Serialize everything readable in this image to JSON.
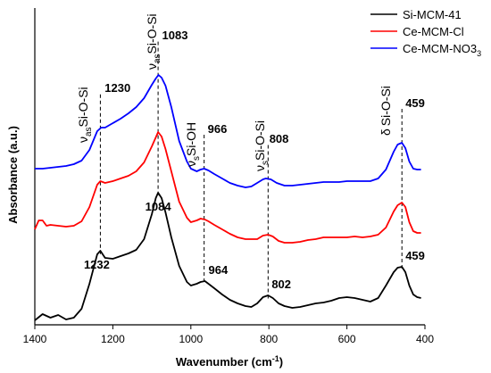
{
  "chart_data": {
    "type": "line",
    "xlabel": "Wavenumber (cm",
    "xlabel_sup": "-1",
    "xlabel_end": ")",
    "ylabel": "Absorbance (a.u.)",
    "xlim": [
      1400,
      400
    ],
    "x_reversed": true,
    "xticks": [
      "1400",
      "1200",
      "1000",
      "800",
      "600",
      "400"
    ],
    "legend_position": "top-right",
    "series": [
      {
        "name": "Si-MCM-41",
        "color": "#000000",
        "points": [
          [
            1400,
            359
          ],
          [
            1380,
            352
          ],
          [
            1360,
            356
          ],
          [
            1340,
            353
          ],
          [
            1320,
            358
          ],
          [
            1300,
            356
          ],
          [
            1280,
            346
          ],
          [
            1260,
            318
          ],
          [
            1240,
            285
          ],
          [
            1232,
            281
          ],
          [
            1220,
            289
          ],
          [
            1200,
            290
          ],
          [
            1180,
            287
          ],
          [
            1160,
            284
          ],
          [
            1140,
            280
          ],
          [
            1120,
            268
          ],
          [
            1100,
            240
          ],
          [
            1090,
            222
          ],
          [
            1084,
            216
          ],
          [
            1075,
            222
          ],
          [
            1065,
            238
          ],
          [
            1050,
            266
          ],
          [
            1030,
            298
          ],
          [
            1010,
            316
          ],
          [
            1000,
            320
          ],
          [
            985,
            318
          ],
          [
            975,
            316
          ],
          [
            964,
            315
          ],
          [
            955,
            318
          ],
          [
            940,
            323
          ],
          [
            920,
            330
          ],
          [
            900,
            336
          ],
          [
            880,
            340
          ],
          [
            860,
            343
          ],
          [
            845,
            344
          ],
          [
            830,
            340
          ],
          [
            815,
            333
          ],
          [
            802,
            331
          ],
          [
            790,
            334
          ],
          [
            775,
            340
          ],
          [
            760,
            343
          ],
          [
            740,
            345
          ],
          [
            720,
            344
          ],
          [
            700,
            342
          ],
          [
            680,
            340
          ],
          [
            660,
            339
          ],
          [
            640,
            337
          ],
          [
            620,
            334
          ],
          [
            600,
            333
          ],
          [
            580,
            334
          ],
          [
            560,
            336
          ],
          [
            540,
            338
          ],
          [
            520,
            334
          ],
          [
            500,
            320
          ],
          [
            480,
            305
          ],
          [
            470,
            300
          ],
          [
            459,
            299
          ],
          [
            450,
            305
          ],
          [
            440,
            320
          ],
          [
            430,
            330
          ],
          [
            420,
            333
          ],
          [
            410,
            334
          ]
        ],
        "markers": [
          {
            "x": 1232,
            "text": "1232",
            "placement": "below"
          },
          {
            "x": 1084,
            "text": "1084",
            "placement": "below"
          },
          {
            "x": 964,
            "text": "964",
            "placement": "above"
          },
          {
            "x": 802,
            "text": "802",
            "placement": "above"
          },
          {
            "x": 459,
            "text": "459",
            "placement": "above"
          }
        ]
      },
      {
        "name": "Ce-MCM-Cl",
        "color": "#ff0000",
        "points": [
          [
            1400,
            257
          ],
          [
            1390,
            247
          ],
          [
            1380,
            247
          ],
          [
            1370,
            253
          ],
          [
            1360,
            252
          ],
          [
            1340,
            253
          ],
          [
            1320,
            254
          ],
          [
            1300,
            253
          ],
          [
            1280,
            248
          ],
          [
            1260,
            232
          ],
          [
            1240,
            207
          ],
          [
            1232,
            203
          ],
          [
            1220,
            205
          ],
          [
            1200,
            203
          ],
          [
            1180,
            200
          ],
          [
            1160,
            197
          ],
          [
            1140,
            192
          ],
          [
            1120,
            182
          ],
          [
            1100,
            164
          ],
          [
            1090,
            154
          ],
          [
            1084,
            148
          ],
          [
            1075,
            153
          ],
          [
            1065,
            167
          ],
          [
            1050,
            192
          ],
          [
            1030,
            226
          ],
          [
            1010,
            244
          ],
          [
            1000,
            249
          ],
          [
            985,
            247
          ],
          [
            975,
            245
          ],
          [
            964,
            246
          ],
          [
            955,
            248
          ],
          [
            940,
            252
          ],
          [
            920,
            257
          ],
          [
            900,
            262
          ],
          [
            880,
            266
          ],
          [
            860,
            268
          ],
          [
            845,
            268
          ],
          [
            830,
            268
          ],
          [
            815,
            264
          ],
          [
            802,
            263
          ],
          [
            790,
            265
          ],
          [
            775,
            270
          ],
          [
            760,
            272
          ],
          [
            740,
            272
          ],
          [
            720,
            271
          ],
          [
            700,
            269
          ],
          [
            680,
            268
          ],
          [
            660,
            266
          ],
          [
            640,
            266
          ],
          [
            620,
            266
          ],
          [
            600,
            266
          ],
          [
            580,
            265
          ],
          [
            560,
            266
          ],
          [
            540,
            265
          ],
          [
            520,
            263
          ],
          [
            500,
            255
          ],
          [
            480,
            237
          ],
          [
            470,
            230
          ],
          [
            459,
            227
          ],
          [
            450,
            232
          ],
          [
            440,
            249
          ],
          [
            430,
            259
          ],
          [
            420,
            261
          ],
          [
            410,
            261
          ]
        ],
        "markers": []
      },
      {
        "name": "Ce-MCM-NO3",
        "color": "#0000ff",
        "points": [
          [
            1400,
            189
          ],
          [
            1380,
            189
          ],
          [
            1360,
            188
          ],
          [
            1340,
            187
          ],
          [
            1320,
            186
          ],
          [
            1300,
            184
          ],
          [
            1280,
            180
          ],
          [
            1260,
            168
          ],
          [
            1240,
            147
          ],
          [
            1230,
            143
          ],
          [
            1220,
            143
          ],
          [
            1200,
            138
          ],
          [
            1180,
            133
          ],
          [
            1160,
            127
          ],
          [
            1140,
            120
          ],
          [
            1120,
            110
          ],
          [
            1100,
            95
          ],
          [
            1090,
            88
          ],
          [
            1083,
            84
          ],
          [
            1075,
            87
          ],
          [
            1065,
            96
          ],
          [
            1050,
            120
          ],
          [
            1030,
            158
          ],
          [
            1010,
            181
          ],
          [
            1000,
            189
          ],
          [
            985,
            192
          ],
          [
            975,
            190
          ],
          [
            966,
            189
          ],
          [
            955,
            191
          ],
          [
            940,
            195
          ],
          [
            920,
            200
          ],
          [
            900,
            205
          ],
          [
            880,
            208
          ],
          [
            860,
            210
          ],
          [
            845,
            209
          ],
          [
            830,
            205
          ],
          [
            815,
            201
          ],
          [
            808,
            200
          ],
          [
            795,
            201
          ],
          [
            780,
            205
          ],
          [
            760,
            208
          ],
          [
            740,
            208
          ],
          [
            720,
            207
          ],
          [
            700,
            206
          ],
          [
            680,
            205
          ],
          [
            660,
            204
          ],
          [
            640,
            204
          ],
          [
            620,
            204
          ],
          [
            600,
            203
          ],
          [
            580,
            203
          ],
          [
            560,
            203
          ],
          [
            540,
            203
          ],
          [
            520,
            200
          ],
          [
            500,
            190
          ],
          [
            480,
            170
          ],
          [
            470,
            162
          ],
          [
            459,
            160
          ],
          [
            450,
            166
          ],
          [
            440,
            181
          ],
          [
            430,
            189
          ],
          [
            420,
            190
          ],
          [
            410,
            190
          ]
        ],
        "markers": [
          {
            "x": 1230,
            "text": "1230",
            "placement": "above"
          },
          {
            "x": 1083,
            "text": "1083",
            "placement": "above"
          },
          {
            "x": 966,
            "text": "966",
            "placement": "above"
          },
          {
            "x": 808,
            "text": "808",
            "placement": "above"
          },
          {
            "x": 459,
            "text": "459",
            "placement": "above"
          }
        ]
      }
    ],
    "legend_subscript": "3",
    "annotations": [
      {
        "main": "ν",
        "sub": "as",
        "text": "Si-O-Si"
      },
      {
        "main": "ν",
        "sub": "as",
        "text": "Si-O-Si"
      },
      {
        "main": "ν",
        "sub": "s",
        "text": "Si-OH"
      },
      {
        "main": "ν",
        "sub": "s",
        "text": "Si-O-Si"
      },
      {
        "main": "δ",
        "sub": "",
        "text": "Si-O-Si"
      }
    ],
    "guide_lines": [
      1232,
      1084,
      966,
      802,
      459
    ]
  }
}
